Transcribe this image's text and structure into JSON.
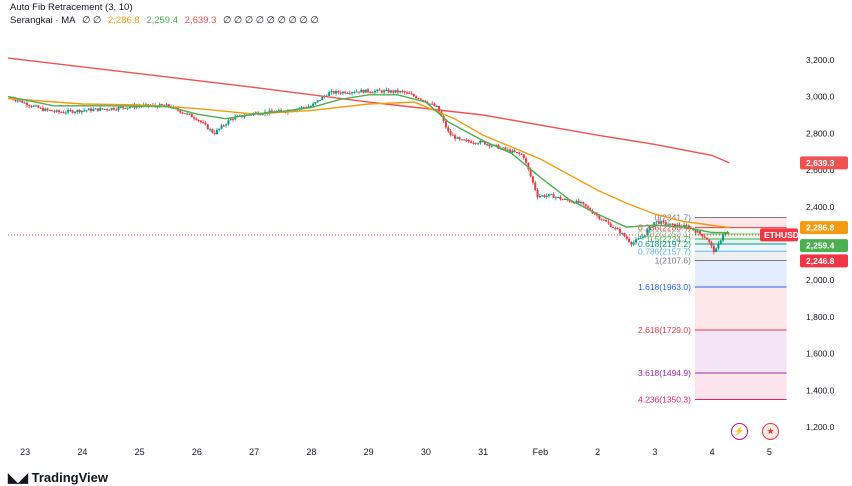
{
  "legend": {
    "fib_title": "Auto Fib Retracement (3, 10)",
    "ma_title": "Serangkai · MA",
    "ma_placeholder": "∅ ∅",
    "ma_values": [
      "2,286.8",
      "2,259.4",
      "2,639.3"
    ],
    "ma_value_colors": [
      "#f39c12",
      "#4caf50",
      "#ef5350"
    ],
    "trailing": "∅ ∅ ∅ ∅ ∅ ∅ ∅ ∅ ∅"
  },
  "brand": "TradingView",
  "chart_data": {
    "type": "candlestick",
    "symbol": "ETHUSD",
    "x_tick_labels": [
      "23",
      "24",
      "25",
      "26",
      "27",
      "28",
      "29",
      "30",
      "31",
      "Feb",
      "2",
      "3",
      "4",
      "5"
    ],
    "x_tick_days": [
      0,
      1,
      2,
      3,
      4,
      5,
      6,
      7,
      8,
      9,
      10,
      11,
      12,
      13
    ],
    "y_ticks": [
      1200,
      1400,
      1600,
      1800,
      2000,
      2200,
      2400,
      2600,
      2800,
      3000,
      3200
    ],
    "y_tick_labels": [
      "1,200.0",
      "1,400.0",
      "1,600.0",
      "1,800.0",
      "2,000.0",
      "2,200.0",
      "2,400.0",
      "2,600.0",
      "2,800.0",
      "3,000.0",
      "3,200.0"
    ],
    "ylim": [
      1130,
      3390
    ],
    "xlim": [
      -0.3,
      13.5
    ],
    "last_price": 2246.8,
    "last_price_label": "2,246.8",
    "ma_labels": [
      {
        "value": 2286.8,
        "label": "2,286.8",
        "color": "#f39c12"
      },
      {
        "value": 2259.4,
        "label": "2,259.4",
        "color": "#4caf50"
      },
      {
        "value": 2639.3,
        "label": "2,639.3",
        "color": "#ef5350"
      }
    ],
    "ma_lines": [
      {
        "color": "#ef5350",
        "points": [
          [
            -0.3,
            3210
          ],
          [
            2,
            3125
          ],
          [
            4,
            3050
          ],
          [
            6,
            2970
          ],
          [
            8,
            2900
          ],
          [
            10,
            2790
          ],
          [
            11,
            2740
          ],
          [
            12,
            2680
          ],
          [
            12.3,
            2639
          ]
        ]
      },
      {
        "color": "#f39c12",
        "points": [
          [
            -0.3,
            2990
          ],
          [
            1,
            2960
          ],
          [
            2,
            2955
          ],
          [
            3,
            2935
          ],
          [
            4,
            2905
          ],
          [
            5,
            2925
          ],
          [
            6,
            2960
          ],
          [
            6.8,
            2970
          ],
          [
            7.5,
            2880
          ],
          [
            8,
            2790
          ],
          [
            9,
            2660
          ],
          [
            10,
            2490
          ],
          [
            10.5,
            2420
          ],
          [
            11,
            2360
          ],
          [
            11.5,
            2320
          ],
          [
            12.3,
            2287
          ]
        ]
      },
      {
        "color": "#4caf50",
        "points": [
          [
            -0.3,
            3000
          ],
          [
            0.5,
            2950
          ],
          [
            1.5,
            2950
          ],
          [
            2.5,
            2945
          ],
          [
            3,
            2905
          ],
          [
            3.5,
            2880
          ],
          [
            4,
            2905
          ],
          [
            4.5,
            2920
          ],
          [
            5,
            2940
          ],
          [
            5.5,
            2985
          ],
          [
            6,
            3010
          ],
          [
            6.5,
            3010
          ],
          [
            7,
            2970
          ],
          [
            7.4,
            2860
          ],
          [
            8,
            2760
          ],
          [
            8.5,
            2690
          ],
          [
            9,
            2560
          ],
          [
            9.5,
            2440
          ],
          [
            10,
            2360
          ],
          [
            10.5,
            2290
          ],
          [
            11,
            2300
          ],
          [
            11.5,
            2290
          ],
          [
            12,
            2260
          ],
          [
            12.3,
            2259
          ]
        ]
      }
    ],
    "price_path": [
      [
        -0.3,
        3000
      ],
      [
        0.3,
        2930
      ],
      [
        0.6,
        2915
      ],
      [
        1,
        2925
      ],
      [
        1.5,
        2935
      ],
      [
        2,
        2950
      ],
      [
        2.5,
        2950
      ],
      [
        3,
        2880
      ],
      [
        3.3,
        2800
      ],
      [
        3.6,
        2880
      ],
      [
        4,
        2910
      ],
      [
        4.5,
        2920
      ],
      [
        5,
        2950
      ],
      [
        5.3,
        3020
      ],
      [
        5.8,
        3030
      ],
      [
        6.2,
        3030
      ],
      [
        6.6,
        3025
      ],
      [
        6.9,
        2990
      ],
      [
        7.2,
        2940
      ],
      [
        7.4,
        2800
      ],
      [
        7.6,
        2760
      ],
      [
        8,
        2750
      ],
      [
        8.3,
        2720
      ],
      [
        8.7,
        2680
      ],
      [
        8.95,
        2460
      ],
      [
        9.2,
        2460
      ],
      [
        9.4,
        2440
      ],
      [
        9.7,
        2420
      ],
      [
        10,
        2350
      ],
      [
        10.4,
        2260
      ],
      [
        10.6,
        2200
      ],
      [
        10.8,
        2240
      ],
      [
        11,
        2320
      ],
      [
        11.3,
        2300
      ],
      [
        11.6,
        2290
      ],
      [
        11.9,
        2230
      ],
      [
        12.05,
        2150
      ],
      [
        12.2,
        2260
      ],
      [
        12.3,
        2247
      ]
    ],
    "fib_levels": [
      {
        "ratio": "0",
        "price": 2341.7,
        "label": "0(2341.7)",
        "color": "#787b86"
      },
      {
        "ratio": "0.236",
        "price": 2286.4,
        "label": "0.236(2286.4)",
        "color": "#f23645"
      },
      {
        "ratio": "0.382",
        "price": 2252.1,
        "label": "0.382(2252.1)",
        "color": "#81c784"
      },
      {
        "ratio": "0.5",
        "price": 2224.7,
        "label": "0.5(2224.7)",
        "color": "#4caf50"
      },
      {
        "ratio": "0.618",
        "price": 2197.2,
        "label": "0.618(2197.2)",
        "color": "#089981"
      },
      {
        "ratio": "0.786",
        "price": 2157.7,
        "label": "0.786(2157.7)",
        "color": "#64b5f6"
      },
      {
        "ratio": "1",
        "price": 2107.6,
        "label": "1(2107.6)",
        "color": "#787b86"
      },
      {
        "ratio": "1.618",
        "price": 1963.0,
        "label": "1.618(1963.0)",
        "color": "#2962ff"
      },
      {
        "ratio": "2.618",
        "price": 1729.0,
        "label": "2.618(1729.0)",
        "color": "#f23645"
      },
      {
        "ratio": "3.618",
        "price": 1494.9,
        "label": "3.618(1494.9)",
        "color": "#9c27b0"
      },
      {
        "ratio": "4.236",
        "price": 1350.3,
        "label": "4.236(1350.3)",
        "color": "#e91e63"
      }
    ],
    "fib_range_days": [
      11.7,
      13.3
    ],
    "grid": false,
    "candle_colors": {
      "up": "#089981",
      "down": "#f23645"
    }
  }
}
